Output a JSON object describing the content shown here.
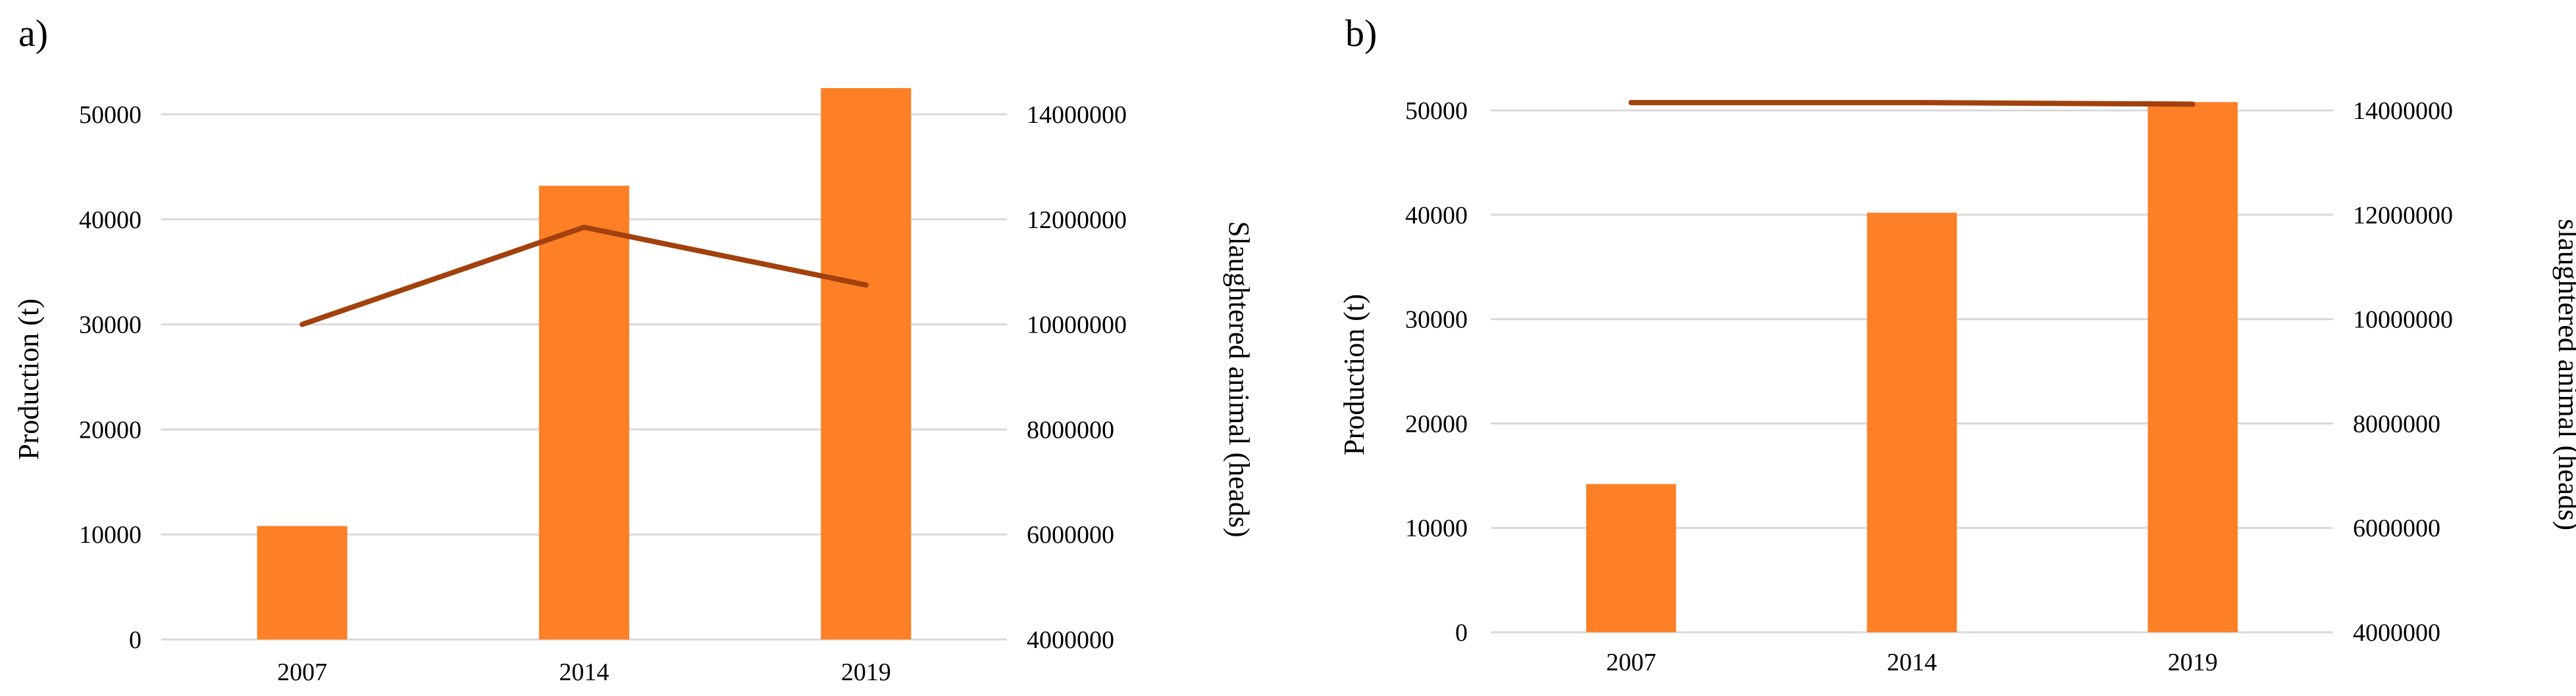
{
  "chart_data": [
    {
      "type": "bar",
      "panel_label": "a)",
      "categories": [
        "2007",
        "2014",
        "2019"
      ],
      "series": [
        {
          "type": "bar",
          "axis": "left",
          "values": [
            10800,
            43200,
            52500
          ],
          "color": "#fd7f26"
        },
        {
          "type": "line",
          "axis": "right",
          "values": [
            10000000,
            11850000,
            10750000
          ],
          "color": "#a2410d"
        }
      ],
      "ylabel": "Production (t)",
      "ylabel_right": "Slaughtered animal (heads)",
      "ylim": [
        0,
        50000
      ],
      "y_ticks": [
        "0",
        "10000",
        "20000",
        "30000",
        "40000",
        "50000"
      ],
      "ylim_right": [
        4000000,
        14000000
      ],
      "y_ticks_right": [
        "4000000",
        "6000000",
        "8000000",
        "10000000",
        "12000000",
        "14000000"
      ],
      "grid": true
    },
    {
      "type": "bar",
      "panel_label": "b)",
      "categories": [
        "2007",
        "2014",
        "2019"
      ],
      "series": [
        {
          "type": "bar",
          "axis": "left",
          "values": [
            14200,
            40200,
            50800
          ],
          "color": "#fd7f26"
        },
        {
          "type": "line",
          "axis": "right",
          "values": [
            14150000,
            14150000,
            14120000
          ],
          "color": "#a2410d"
        }
      ],
      "ylabel": "Production (t)",
      "ylabel_right": "slaughtered animal (heads)",
      "ylim": [
        0,
        50000
      ],
      "y_ticks": [
        "0",
        "10000",
        "20000",
        "30000",
        "40000",
        "50000"
      ],
      "ylim_right": [
        4000000,
        14000000
      ],
      "y_ticks_right": [
        "4000000",
        "6000000",
        "8000000",
        "10000000",
        "12000000",
        "14000000"
      ],
      "grid": true
    }
  ]
}
